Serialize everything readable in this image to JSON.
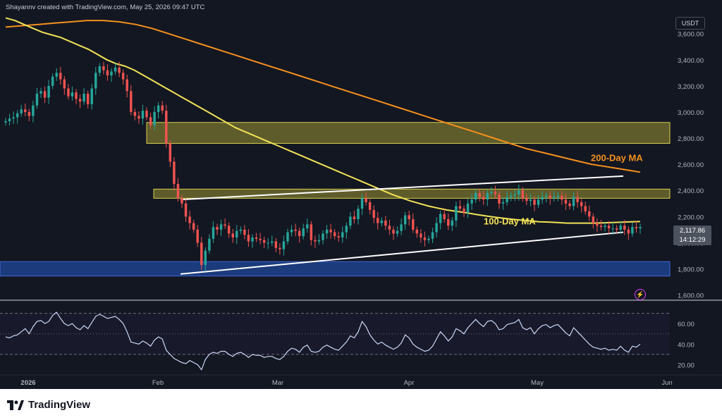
{
  "header": {
    "credit": "Shayannv created with TradingView.com, May 25, 2026 09:47 UTC",
    "pair_badge": "USDT"
  },
  "footer": {
    "brand": "TradingView"
  },
  "colors": {
    "background": "#131722",
    "candle_up": "#26a69a",
    "candle_down": "#ef5350",
    "ma100": "#f2e257",
    "ma200": "#f5901e",
    "zone_yellow": "#9c9533",
    "zone_blue": "#1e3f86",
    "rsi": "#cdd7f5",
    "trendline": "#ffffff"
  },
  "chart_data": {
    "type": "candlestick",
    "price_axis": {
      "ticks": [
        "3,600.00",
        "3,400.00",
        "3,200.00",
        "3,000.00",
        "2,800.00",
        "2,600.00",
        "2,400.00",
        "2,200.00",
        "2,000.00",
        "1,800.00",
        "1,600.00"
      ],
      "tick_values": [
        3600,
        3400,
        3200,
        3000,
        2800,
        2600,
        2400,
        2200,
        2000,
        1800,
        1600
      ],
      "range": [
        1560,
        3760
      ]
    },
    "time_axis": {
      "labels": [
        "2026",
        "Feb",
        "Mar",
        "Apr",
        "May",
        "Jun"
      ]
    },
    "last_price": "2,117.86",
    "countdown": "14:12:29",
    "annotations": [
      {
        "text": "200-Day MA",
        "color": "#f5901e"
      },
      {
        "text": "100-Day MA",
        "color": "#f2e257"
      }
    ],
    "zones": [
      {
        "name": "upper resistance zone",
        "from": 2760,
        "to": 2920
      },
      {
        "name": "middle resistance zone",
        "from": 2340,
        "to": 2410
      },
      {
        "name": "support zone",
        "from": 1745,
        "to": 1855
      }
    ],
    "closes": [
      2930,
      2950,
      2960,
      2990,
      3020,
      3000,
      2970,
      3050,
      3140,
      3160,
      3110,
      3200,
      3270,
      3300,
      3250,
      3180,
      3120,
      3150,
      3100,
      3080,
      3140,
      3060,
      3180,
      3300,
      3350,
      3320,
      3280,
      3310,
      3340,
      3300,
      3250,
      3160,
      3000,
      2970,
      2950,
      3010,
      2960,
      2900,
      3000,
      3050,
      3010,
      2760,
      2620,
      2450,
      2340,
      2300,
      2200,
      2150,
      2100,
      2000,
      1830,
      1940,
      2030,
      2120,
      2100,
      2140,
      2130,
      2070,
      2040,
      2090,
      2100,
      2060,
      2010,
      2040,
      2030,
      2020,
      2000,
      2000,
      2010,
      1960,
      1950,
      2010,
      2080,
      2100,
      2090,
      2050,
      2110,
      2140,
      2020,
      2010,
      2020,
      2070,
      2100,
      2080,
      2050,
      2040,
      2080,
      2130,
      2200,
      2180,
      2260,
      2340,
      2310,
      2250,
      2190,
      2150,
      2170,
      2130,
      2100,
      2070,
      2090,
      2140,
      2210,
      2180,
      2100,
      2070,
      2040,
      2020,
      2030,
      2080,
      2150,
      2220,
      2180,
      2130,
      2170,
      2280,
      2260,
      2230,
      2300,
      2330,
      2380,
      2350,
      2330,
      2380,
      2390,
      2370,
      2300,
      2310,
      2350,
      2360,
      2370,
      2400,
      2340,
      2320,
      2330,
      2290,
      2330,
      2350,
      2360,
      2340,
      2350,
      2360,
      2330,
      2300,
      2280,
      2350,
      2310,
      2280,
      2240,
      2200,
      2150,
      2130,
      2120,
      2130,
      2110,
      2110,
      2100,
      2130,
      2100,
      2070,
      2120,
      2110,
      2120
    ],
    "ma100": [
      3720,
      3700,
      3670,
      3640,
      3610,
      3590,
      3570,
      3540,
      3510,
      3480,
      3440,
      3400,
      3370,
      3350,
      3320,
      3280,
      3240,
      3200,
      3160,
      3120,
      3080,
      3040,
      3000,
      2960,
      2920,
      2880,
      2850,
      2820,
      2790,
      2760,
      2730,
      2700,
      2670,
      2640,
      2610,
      2580,
      2550,
      2520,
      2490,
      2460,
      2430,
      2400,
      2370,
      2345,
      2320,
      2300,
      2280,
      2265,
      2250,
      2240,
      2230,
      2218,
      2207,
      2197,
      2188,
      2180,
      2173,
      2167,
      2160,
      2158,
      2155,
      2150,
      2150,
      2150,
      2150,
      2152,
      2155,
      2157,
      2160,
      2162
    ],
    "ma200": [
      3650,
      3660,
      3670,
      3680,
      3690,
      3700,
      3700,
      3690,
      3670,
      3640,
      3600,
      3560,
      3520,
      3480,
      3440,
      3400,
      3360,
      3320,
      3280,
      3240,
      3200,
      3160,
      3120,
      3080,
      3040,
      3000,
      2960,
      2920,
      2880,
      2840,
      2800,
      2760,
      2720,
      2690,
      2660,
      2630,
      2600,
      2580,
      2560,
      2540
    ],
    "trendlines": [
      {
        "name": "channel upper",
        "from_price": 2330,
        "to_price": 2510
      },
      {
        "name": "channel lower",
        "from_price": 1760,
        "to_price": 2080
      }
    ],
    "rsi": {
      "ticks": [
        "60.00",
        "40.00",
        "20.00"
      ],
      "tick_values": [
        60,
        40,
        20
      ],
      "range": [
        10,
        80
      ],
      "levels": [
        70,
        50,
        30
      ],
      "values": [
        47,
        46,
        48,
        49,
        52,
        55,
        50,
        57,
        62,
        63,
        60,
        62,
        68,
        71,
        65,
        60,
        58,
        60,
        56,
        54,
        58,
        55,
        61,
        67,
        69,
        67,
        65,
        66,
        67,
        64,
        60,
        52,
        42,
        41,
        40,
        43,
        41,
        38,
        44,
        47,
        45,
        34,
        30,
        26,
        24,
        22,
        21,
        24,
        22,
        20,
        15,
        25,
        30,
        32,
        31,
        33,
        33,
        30,
        28,
        31,
        32,
        30,
        27,
        30,
        29,
        29,
        27,
        28,
        28,
        26,
        25,
        28,
        33,
        36,
        35,
        32,
        37,
        39,
        33,
        32,
        33,
        37,
        39,
        37,
        35,
        34,
        38,
        42,
        48,
        46,
        52,
        62,
        57,
        49,
        44,
        40,
        42,
        39,
        37,
        35,
        37,
        41,
        49,
        46,
        40,
        37,
        35,
        33,
        34,
        38,
        45,
        52,
        48,
        43,
        47,
        55,
        53,
        50,
        56,
        60,
        64,
        60,
        57,
        62,
        63,
        60,
        54,
        55,
        59,
        60,
        61,
        64,
        56,
        54,
        56,
        50,
        55,
        58,
        59,
        56,
        58,
        59,
        55,
        51,
        48,
        56,
        52,
        48,
        44,
        40,
        37,
        36,
        35,
        36,
        34,
        35,
        34,
        38,
        34,
        32,
        38,
        37,
        40
      ]
    }
  }
}
